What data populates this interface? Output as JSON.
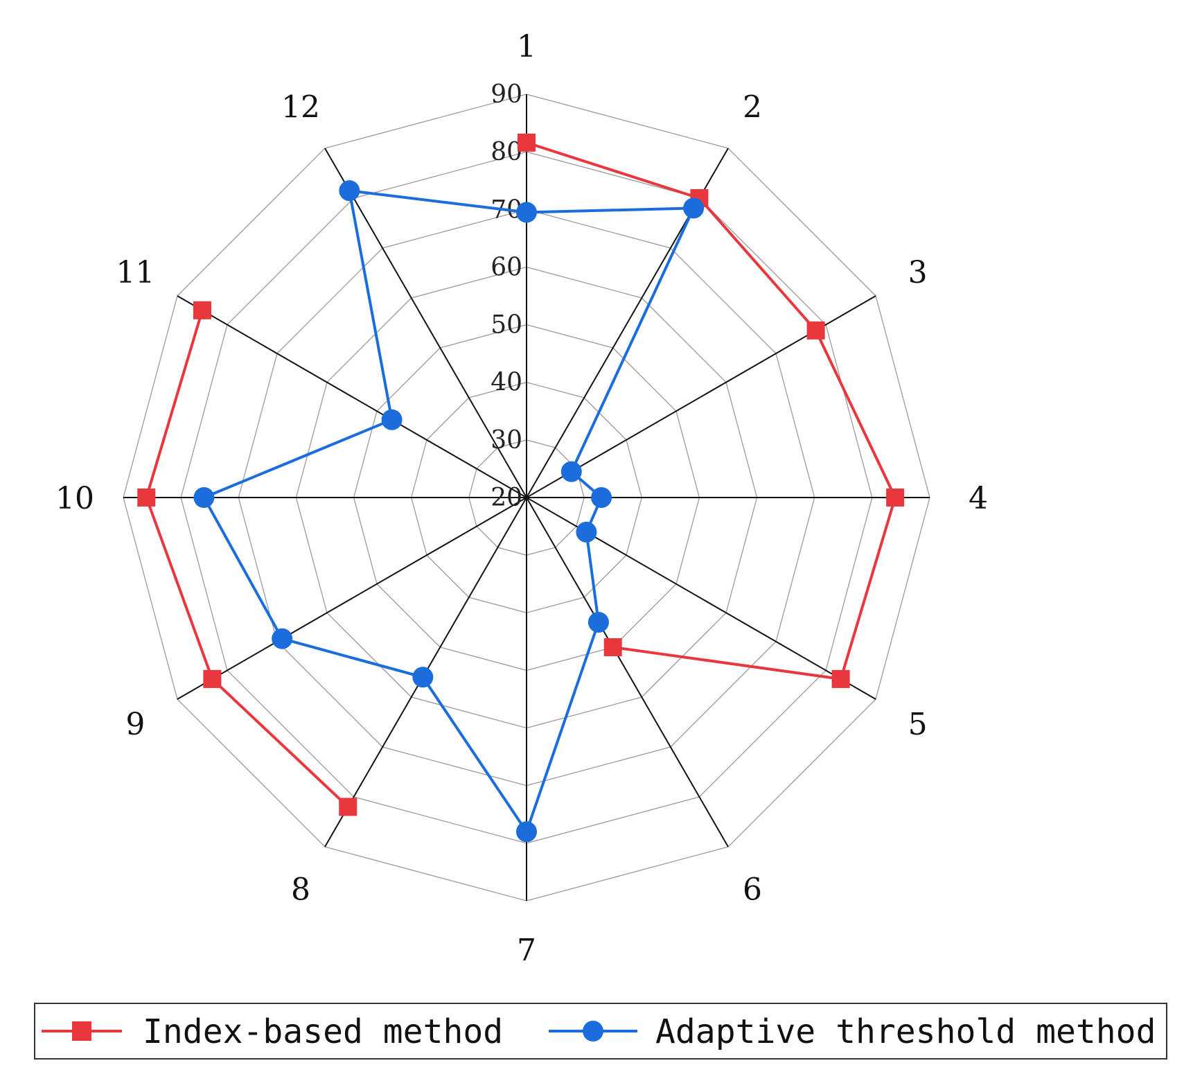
{
  "chart_data": {
    "type": "radar",
    "categories": [
      "1",
      "2",
      "3",
      "4",
      "5",
      "6",
      "7",
      "8",
      "9",
      "10",
      "11",
      "12"
    ],
    "ticks": [
      "20",
      "30",
      "40",
      "50",
      "60",
      "70",
      "80",
      "90"
    ],
    "rlim": [
      20,
      90
    ],
    "grid": true,
    "legend_position": "bottom",
    "series": [
      {
        "name": "Index-based method",
        "color": "#e8383d",
        "marker": "square",
        "values": [
          81.6,
          80,
          78,
          84,
          83,
          50,
          null,
          82,
          83,
          86,
          85,
          null
        ]
      },
      {
        "name": "Adaptive threshold method",
        "color": "#1a6ddb",
        "marker": "circle",
        "values": [
          69.5,
          78,
          29,
          33,
          32,
          45,
          78,
          56,
          69,
          76,
          47,
          81.5
        ]
      }
    ]
  }
}
